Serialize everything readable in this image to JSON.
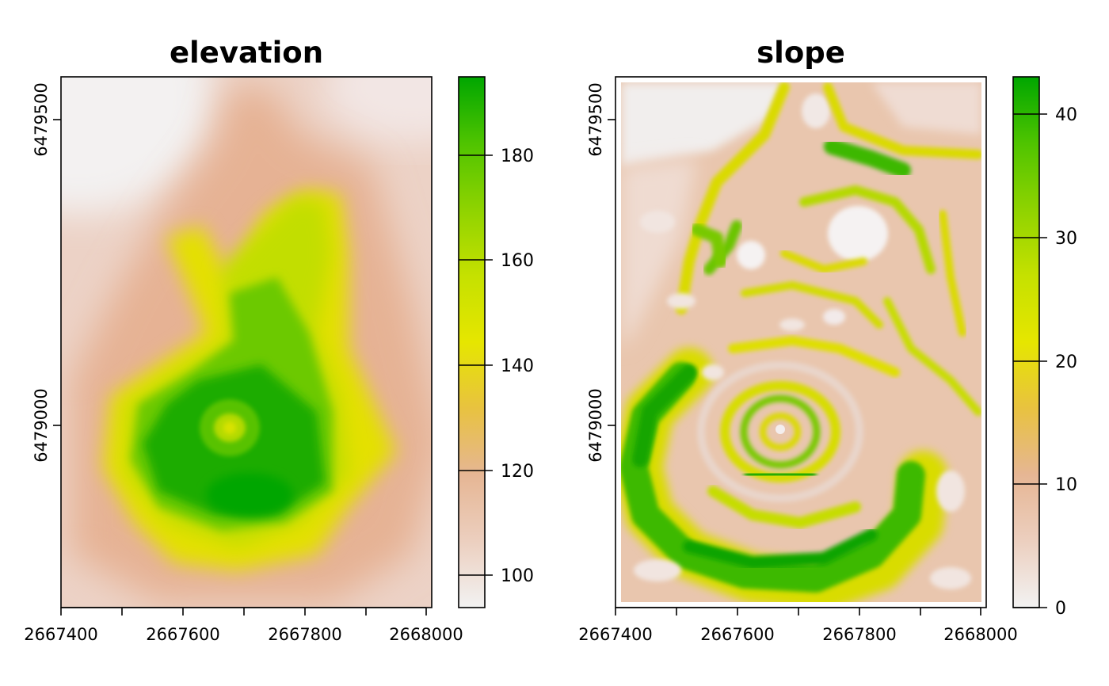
{
  "panels": [
    {
      "id": "elevation",
      "title": "elevation",
      "x_ticks": [
        "2667400",
        "2667600",
        "2667800",
        "2668000"
      ],
      "x_tick_values": [
        2667400,
        2667500,
        2667600,
        2667700,
        2667800,
        2667900,
        2668000
      ],
      "y_ticks": [
        "6479000",
        "6479500"
      ],
      "y_tick_values": [
        6479000,
        6479500
      ],
      "x_range": [
        2667400,
        2668010
      ],
      "y_range": [
        6478700,
        6479570
      ],
      "legend": {
        "ticks": [
          "100",
          "120",
          "140",
          "160",
          "180"
        ],
        "tick_values": [
          100,
          120,
          140,
          160,
          180
        ],
        "range": [
          94,
          195
        ]
      }
    },
    {
      "id": "slope",
      "title": "slope",
      "x_ticks": [
        "2667400",
        "2667600",
        "2667800",
        "2668000"
      ],
      "x_tick_values": [
        2667400,
        2667500,
        2667600,
        2667700,
        2667800,
        2667900,
        2668000
      ],
      "y_ticks": [
        "6479000",
        "6479500"
      ],
      "y_tick_values": [
        6479000,
        6479500
      ],
      "x_range": [
        2667400,
        2668010
      ],
      "y_range": [
        6478700,
        6479570
      ],
      "legend": {
        "ticks": [
          "0",
          "10",
          "20",
          "30",
          "40"
        ],
        "tick_values": [
          0,
          10,
          20,
          30,
          40
        ],
        "range": [
          0,
          43
        ]
      }
    }
  ],
  "colors": {
    "ramp": [
      "#f2f2f2",
      "#eccfbf",
      "#e6b694",
      "#e8c240",
      "#e6e600",
      "#c5e100",
      "#8fd300",
      "#4fc400",
      "#00a600"
    ]
  }
}
